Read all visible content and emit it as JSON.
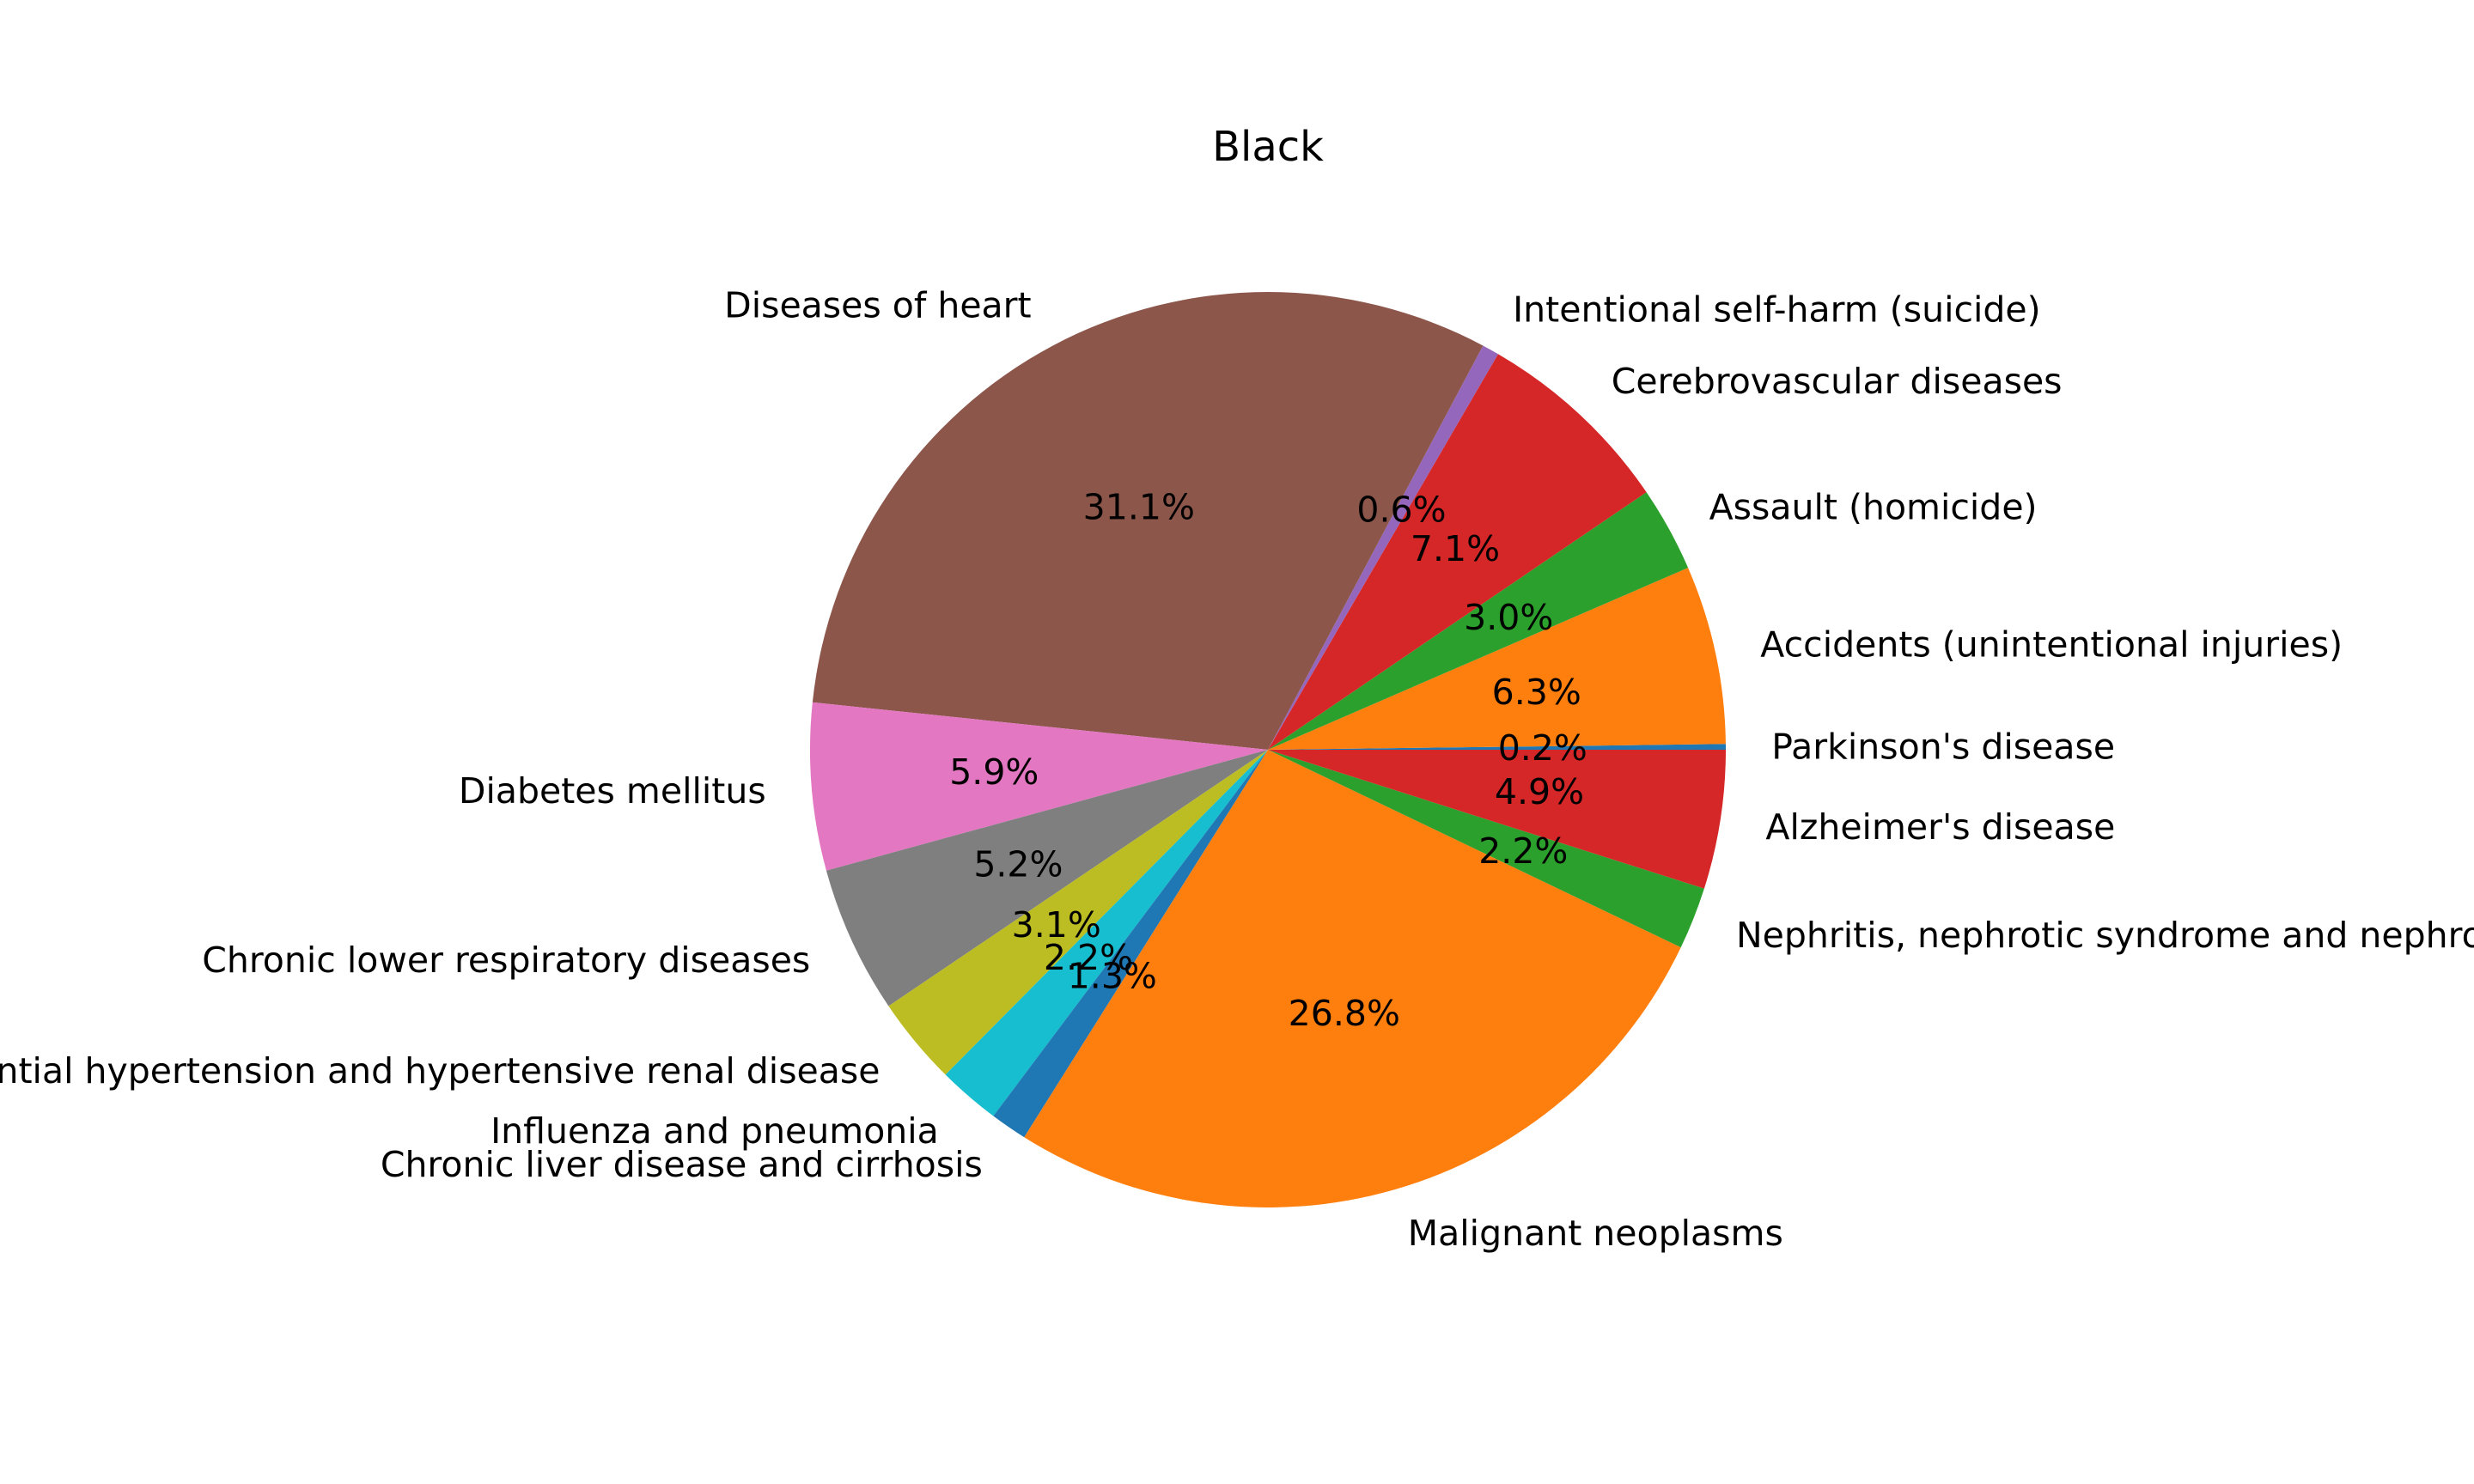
{
  "chart_data": {
    "type": "pie",
    "title": "Black",
    "start_angle_deg": 0,
    "direction": "counterclockwise",
    "slices": [
      {
        "label": "Parkinson's disease",
        "value": 0.2,
        "pct_label": "0.2%",
        "color": "#1f77b4"
      },
      {
        "label": "Accidents (unintentional injuries)",
        "value": 6.3,
        "pct_label": "6.3%",
        "color": "#ff7f0e"
      },
      {
        "label": "Assault (homicide)",
        "value": 3.0,
        "pct_label": "3.0%",
        "color": "#2ca02c"
      },
      {
        "label": "Cerebrovascular diseases",
        "value": 7.1,
        "pct_label": "7.1%",
        "color": "#d62728"
      },
      {
        "label": "Intentional self-harm (suicide)",
        "value": 0.6,
        "pct_label": "0.6%",
        "color": "#9467bd"
      },
      {
        "label": "Diseases of heart",
        "value": 31.1,
        "pct_label": "31.1%",
        "color": "#8c564b"
      },
      {
        "label": "Diabetes mellitus",
        "value": 5.9,
        "pct_label": "5.9%",
        "color": "#e377c2"
      },
      {
        "label": "Chronic lower respiratory diseases",
        "value": 5.2,
        "pct_label": "5.2%",
        "color": "#7f7f7f"
      },
      {
        "label": "Essential hypertension and hypertensive renal disease",
        "value": 3.1,
        "pct_label": "3.1%",
        "color": "#bcbd22"
      },
      {
        "label": "Influenza and pneumonia",
        "value": 2.2,
        "pct_label": "2.2%",
        "color": "#17becf"
      },
      {
        "label": "Chronic liver disease and cirrhosis",
        "value": 1.3,
        "pct_label": "1.3%",
        "color": "#1f77b4"
      },
      {
        "label": "Malignant neoplasms",
        "value": 26.8,
        "pct_label": "26.8%",
        "color": "#ff7f0e"
      },
      {
        "label": "Nephritis, nephrotic syndrome and nephrosis",
        "value": 2.2,
        "pct_label": "2.2%",
        "color": "#2ca02c"
      },
      {
        "label": "Alzheimer's disease",
        "value": 4.9,
        "pct_label": "4.9%",
        "color": "#d62728"
      }
    ]
  }
}
